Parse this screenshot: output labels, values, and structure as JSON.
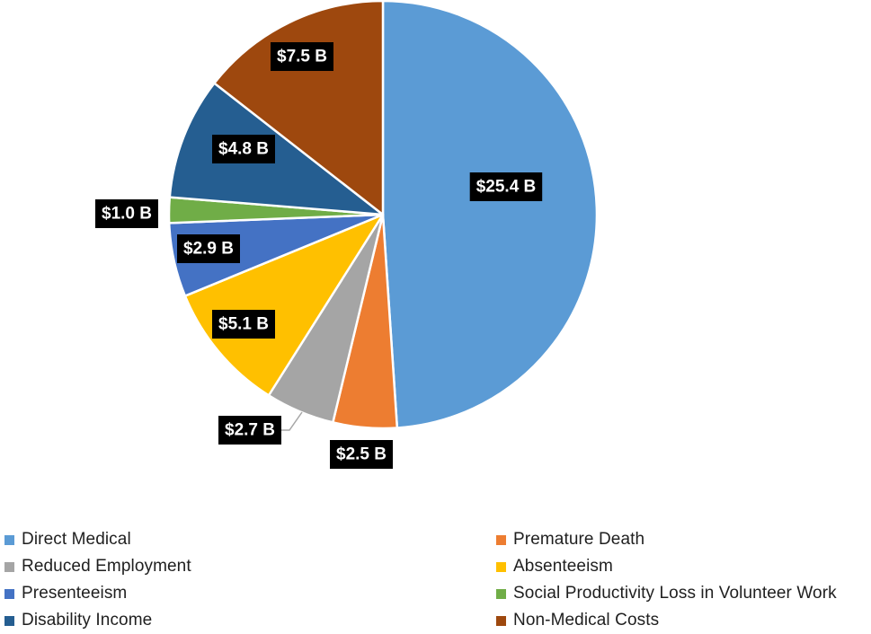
{
  "chart_data": {
    "type": "pie",
    "title": "",
    "unit": "B",
    "slices": [
      {
        "name": "Direct Medical",
        "value": 25.4,
        "label": "$25.4 B",
        "color": "#5b9bd5"
      },
      {
        "name": "Premature Death",
        "value": 2.5,
        "label": "$2.5 B",
        "color": "#ed7d31"
      },
      {
        "name": "Reduced Employment",
        "value": 2.7,
        "label": "$2.7 B",
        "color": "#a5a5a5"
      },
      {
        "name": "Absenteeism",
        "value": 5.1,
        "label": "$5.1 B",
        "color": "#ffc000"
      },
      {
        "name": "Presenteeism",
        "value": 2.9,
        "label": "$2.9 B",
        "color": "#4472c4"
      },
      {
        "name": "Social Productivity Loss in Volunteer Work",
        "value": 1.0,
        "label": "$1.0 B",
        "color": "#70ad47"
      },
      {
        "name": "Disability Income",
        "value": 4.8,
        "label": "$4.8 B",
        "color": "#255e91"
      },
      {
        "name": "Non-Medical Costs",
        "value": 7.5,
        "label": "$7.5 B",
        "color": "#9e480e"
      }
    ],
    "legend": {
      "position": "bottom",
      "items": [
        "Direct Medical",
        "Premature Death",
        "Reduced Employment",
        "Absenteeism",
        "Presenteeism",
        "Social Productivity Loss in Volunteer Work",
        "Disability Income",
        "Non-Medical Costs"
      ]
    }
  }
}
